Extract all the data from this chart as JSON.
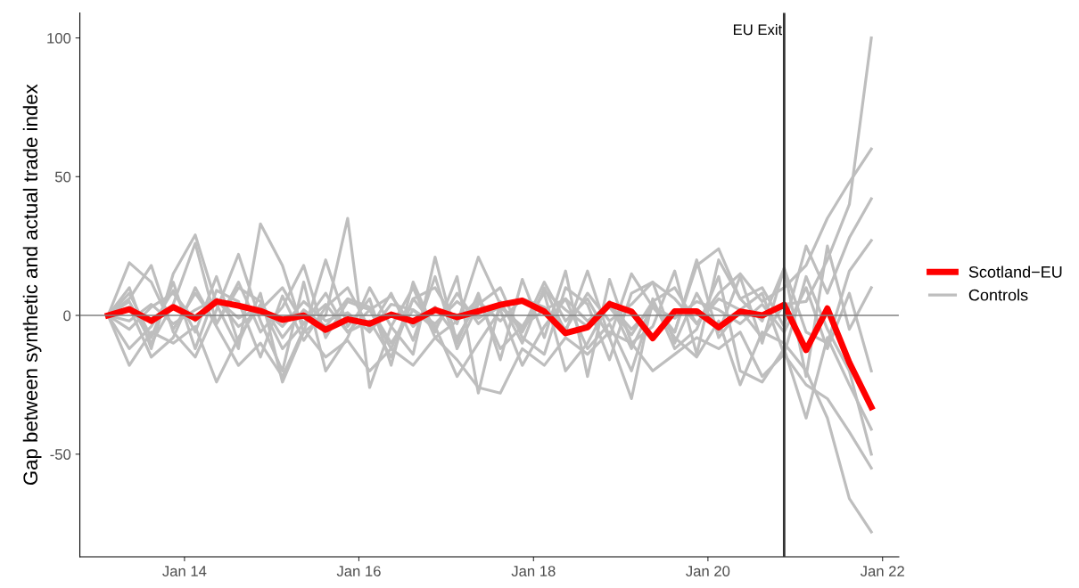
{
  "chart_data": {
    "type": "line",
    "ylabel": "Gap between synthetic and actual trade index",
    "x": [
      "2013-02-15",
      "2013-05-15",
      "2013-08-15",
      "2013-11-15",
      "2014-02-15",
      "2014-05-15",
      "2014-08-15",
      "2014-11-15",
      "2015-02-15",
      "2015-05-15",
      "2015-08-15",
      "2015-11-15",
      "2016-02-15",
      "2016-05-15",
      "2016-08-15",
      "2016-11-15",
      "2017-02-15",
      "2017-05-15",
      "2017-08-15",
      "2017-11-15",
      "2018-02-15",
      "2018-05-15",
      "2018-08-15",
      "2018-11-15",
      "2019-02-15",
      "2019-05-15",
      "2019-08-15",
      "2019-11-15",
      "2020-02-15",
      "2020-05-15",
      "2020-08-15",
      "2020-11-15",
      "2021-02-15",
      "2021-05-15",
      "2021-08-15",
      "2021-11-15"
    ],
    "series": [
      {
        "name": "Scotland−EU",
        "color": "#ff0000",
        "values": [
          0,
          2.2,
          -2,
          3,
          -1,
          5,
          3.5,
          1.6,
          -1.6,
          0,
          -5.2,
          -1.4,
          -3,
          0.3,
          -2.1,
          2,
          -0.6,
          1.5,
          3.8,
          5.3,
          1.4,
          -6.4,
          -4.3,
          4.1,
          1.4,
          -8.2,
          1.5,
          1.5,
          -4.3,
          1.4,
          0,
          3.8,
          -12.5,
          2.5,
          -17,
          -33
        ]
      },
      {
        "name": "Controls",
        "color": "#bebebe",
        "values": [
          0,
          19,
          12,
          -5,
          8,
          -3,
          10,
          5,
          -8,
          2,
          -4,
          6,
          3,
          -10,
          2,
          -5,
          8,
          -3,
          4,
          -6,
          9,
          2,
          -4,
          3,
          -7,
          5,
          10,
          -3,
          6,
          2,
          -8,
          4,
          5,
          20,
          40,
          100
        ]
      },
      {
        "color": "#bebebe",
        "values": [
          0,
          -5,
          3,
          8,
          -2,
          6,
          -4,
          2,
          10,
          -3,
          4,
          -6,
          2,
          7,
          -4,
          3,
          -8,
          5,
          -2,
          6,
          3,
          -5,
          8,
          -2,
          4,
          12,
          6,
          -3,
          8,
          15,
          5,
          10,
          18,
          35,
          48,
          60
        ]
      },
      {
        "color": "#bebebe",
        "values": [
          0,
          5,
          -10,
          4,
          26,
          -3,
          12,
          -6,
          3,
          18,
          -8,
          5,
          2,
          -12,
          6,
          10,
          -3,
          21,
          4,
          -5,
          12,
          -2,
          6,
          -8,
          15,
          3,
          -6,
          18,
          24,
          6,
          10,
          -4,
          25,
          8,
          28,
          42
        ]
      },
      {
        "color": "#bebebe",
        "values": [
          0,
          -18,
          -6,
          -10,
          -4,
          -24,
          -8,
          4,
          -12,
          -3,
          8,
          -6,
          -2,
          -15,
          6,
          -4,
          -22,
          -10,
          2,
          -18,
          -4,
          6,
          -12,
          -3,
          -20,
          4,
          -8,
          -15,
          -2,
          -25,
          -6,
          -10,
          -20,
          -37,
          -66,
          -78
        ]
      },
      {
        "color": "#bebebe",
        "values": [
          0,
          3,
          -15,
          -8,
          10,
          -4,
          -18,
          -10,
          -22,
          -5,
          -15,
          -9,
          -20,
          -12,
          -18,
          -8,
          -16,
          -26,
          -28,
          -12,
          -18,
          -8,
          -14,
          -6,
          -10,
          -20,
          -14,
          -8,
          -12,
          -6,
          -22,
          -14,
          -25,
          -30,
          -42,
          -55
        ]
      },
      {
        "color": "#bebebe",
        "values": [
          0,
          10,
          -12,
          15,
          29,
          4,
          -12,
          33,
          18,
          -6,
          0,
          35,
          -26,
          -4,
          10,
          -8,
          -2,
          6,
          -12,
          -4,
          8,
          -20,
          -10,
          5,
          -12,
          4,
          -6,
          20,
          -8,
          2,
          8,
          -14,
          14,
          -5,
          -20,
          -50
        ]
      },
      {
        "color": "#bebebe",
        "values": [
          0,
          -12,
          -4,
          9,
          -6,
          14,
          -10,
          8,
          -24,
          -6,
          20,
          -4,
          6,
          -18,
          12,
          -6,
          14,
          -28,
          5,
          -10,
          10,
          -6,
          16,
          -8,
          -30,
          6,
          -12,
          -5,
          14,
          -20,
          -24,
          -12,
          -37,
          -8,
          -25,
          -41
        ]
      },
      {
        "color": "#bebebe",
        "values": [
          0,
          6,
          18,
          -6,
          -15,
          2,
          22,
          -2,
          -20,
          12,
          -20,
          -8,
          10,
          -4,
          -14,
          21,
          -10,
          8,
          -16,
          13,
          -8,
          16,
          -22,
          13,
          -10,
          -4,
          16,
          -14,
          20,
          6,
          -2,
          17,
          -6,
          -10,
          16,
          27
        ]
      },
      {
        "color": "#bebebe",
        "values": [
          0,
          -2,
          4,
          -3,
          2,
          6,
          -1,
          3,
          -4,
          5,
          -2,
          1,
          -6,
          4,
          2,
          -3,
          5,
          -1,
          3,
          -4,
          2,
          6,
          -2,
          4,
          -5,
          3,
          -1,
          5,
          2,
          -3,
          4,
          -6,
          10,
          -12,
          8,
          -20
        ]
      },
      {
        "color": "#bebebe",
        "values": [
          0,
          8,
          -8,
          12,
          -12,
          9,
          5,
          -15,
          7,
          -9,
          3,
          10,
          -5,
          8,
          -9,
          14,
          -12,
          4,
          10,
          -8,
          -14,
          10,
          4,
          -16,
          8,
          12,
          -10,
          8,
          -6,
          14,
          -10,
          17,
          -22,
          25,
          -5,
          10
        ]
      }
    ],
    "xlim": [
      "2012-10-20",
      "2022-03-10"
    ],
    "xticks": [
      {
        "value": "2014-01-01",
        "label": "Jan 14"
      },
      {
        "value": "2016-01-01",
        "label": "Jan 16"
      },
      {
        "value": "2018-01-01",
        "label": "Jan 18"
      },
      {
        "value": "2020-01-01",
        "label": "Jan 20"
      },
      {
        "value": "2022-01-01",
        "label": "Jan 22"
      }
    ],
    "ylim": [
      -87,
      109
    ],
    "yticks": [
      -50,
      0,
      50,
      100
    ],
    "ref_lines": [
      {
        "axis": "y",
        "value": 0,
        "color": "#808080"
      },
      {
        "axis": "x",
        "value": "2020-11-15",
        "label": "EU Exit",
        "color": "#333333"
      }
    ],
    "grid": false,
    "legend": "right",
    "marker": "none",
    "line_style": "solid"
  }
}
